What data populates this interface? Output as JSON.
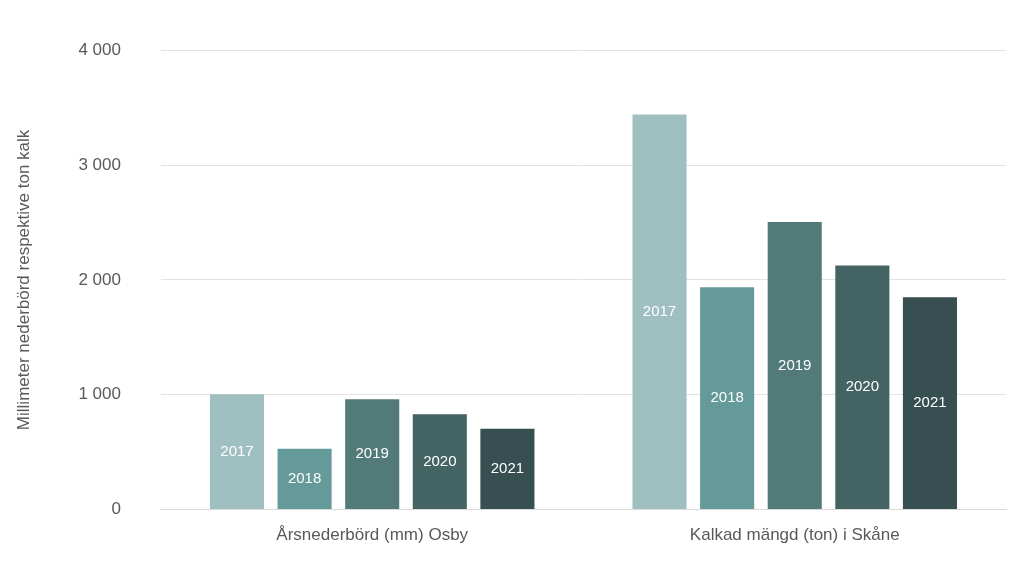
{
  "chart_data": {
    "type": "bar",
    "y_label": "Millimeter nederbörd respektive ton kalk",
    "categories": [
      "Årsnederbörd (mm) Osby",
      "Kalkad mängd (ton) i Skåne"
    ],
    "series": [
      {
        "name": "2017",
        "color": "#a0bfc0",
        "values": [
          1005,
          3440
        ]
      },
      {
        "name": "2018",
        "color": "#659a9a",
        "values": [
          530,
          1935
        ]
      },
      {
        "name": "2019",
        "color": "#527a79",
        "values": [
          960,
          2505
        ]
      },
      {
        "name": "2020",
        "color": "#436463",
        "values": [
          830,
          2125
        ]
      },
      {
        "name": "2021",
        "color": "#374f50",
        "values": [
          705,
          1850
        ]
      }
    ],
    "ylim": [
      0,
      4000
    ],
    "yticks": [
      {
        "value": 0,
        "label": "0"
      },
      {
        "value": 1000,
        "label": "1 000"
      },
      {
        "value": 2000,
        "label": "2 000"
      },
      {
        "value": 3000,
        "label": "3 000"
      },
      {
        "value": 4000,
        "label": "4 000"
      }
    ],
    "grid": true
  }
}
